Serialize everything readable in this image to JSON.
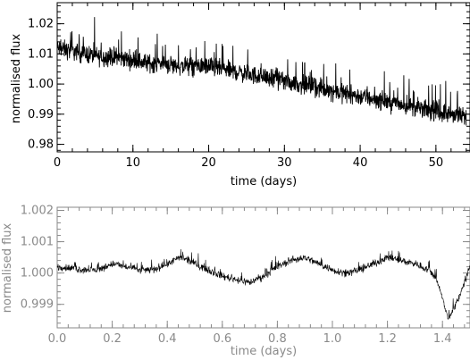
{
  "chart_data": [
    {
      "type": "line",
      "title": "",
      "xlabel": "time (days)",
      "ylabel": "normalised flux",
      "xlim": [
        0,
        54.5
      ],
      "ylim": [
        0.9775,
        1.027
      ],
      "xticks": [
        "0",
        "10",
        "20",
        "30",
        "40",
        "50"
      ],
      "yticks": [
        "0.98",
        "0.99",
        "1.00",
        "1.01",
        "1.02"
      ],
      "grid": false,
      "legend": "none",
      "color": "#000000",
      "series": [
        {
          "x": [
            0,
            2,
            4,
            6,
            8,
            10,
            12,
            14,
            16,
            18,
            20,
            22,
            24,
            26,
            28,
            30,
            32,
            34,
            36,
            38,
            40,
            42,
            44,
            46,
            48,
            50,
            52,
            54
          ],
          "values": [
            1.011,
            1.01,
            1.009,
            1.008,
            1.008,
            1.007,
            1.006,
            1.006,
            1.005,
            1.005,
            1.005,
            1.004,
            1.003,
            1.002,
            1.001,
            1.0,
            0.999,
            0.998,
            0.997,
            0.996,
            0.995,
            0.994,
            0.993,
            0.992,
            0.991,
            0.99,
            0.989,
            0.988
          ],
          "scatter_range": [
            -0.006,
            0.009
          ]
        }
      ]
    },
    {
      "type": "line",
      "title": "",
      "xlabel": "time (days)",
      "ylabel": "normalised flux",
      "xlim": [
        0,
        1.5
      ],
      "ylim": [
        0.99825,
        1.0021
      ],
      "xticks": [
        "0.0",
        "0.2",
        "0.4",
        "0.6",
        "0.8",
        "1.0",
        "1.2",
        "1.4"
      ],
      "yticks": [
        "0.999",
        "1.000",
        "1.001",
        "1.002"
      ],
      "grid": false,
      "legend": "none",
      "color": "#000000",
      "series": [
        {
          "x": [
            0.0,
            0.05,
            0.1,
            0.15,
            0.2,
            0.25,
            0.3,
            0.35,
            0.4,
            0.45,
            0.5,
            0.55,
            0.6,
            0.65,
            0.7,
            0.75,
            0.8,
            0.85,
            0.9,
            0.95,
            1.0,
            1.05,
            1.1,
            1.15,
            1.2,
            1.25,
            1.3,
            1.35,
            1.38,
            1.42,
            1.45,
            1.48,
            1.5
          ],
          "values": [
            1.0002,
            1.00015,
            1.0001,
            1.0001,
            1.0003,
            1.0002,
            1.0001,
            1.0001,
            1.0003,
            1.0005,
            1.0003,
            1.0001,
            0.9999,
            0.9998,
            0.9997,
            0.9999,
            1.0002,
            1.0004,
            1.0005,
            1.0003,
            1.0001,
            1.0,
            1.0001,
            1.0003,
            1.0005,
            1.0004,
            1.0003,
            1.0001,
            0.9998,
            0.99855,
            0.999,
            0.9997,
            1.0002
          ],
          "scatter_range": [
            -0.0003,
            0.0003
          ]
        }
      ]
    }
  ]
}
